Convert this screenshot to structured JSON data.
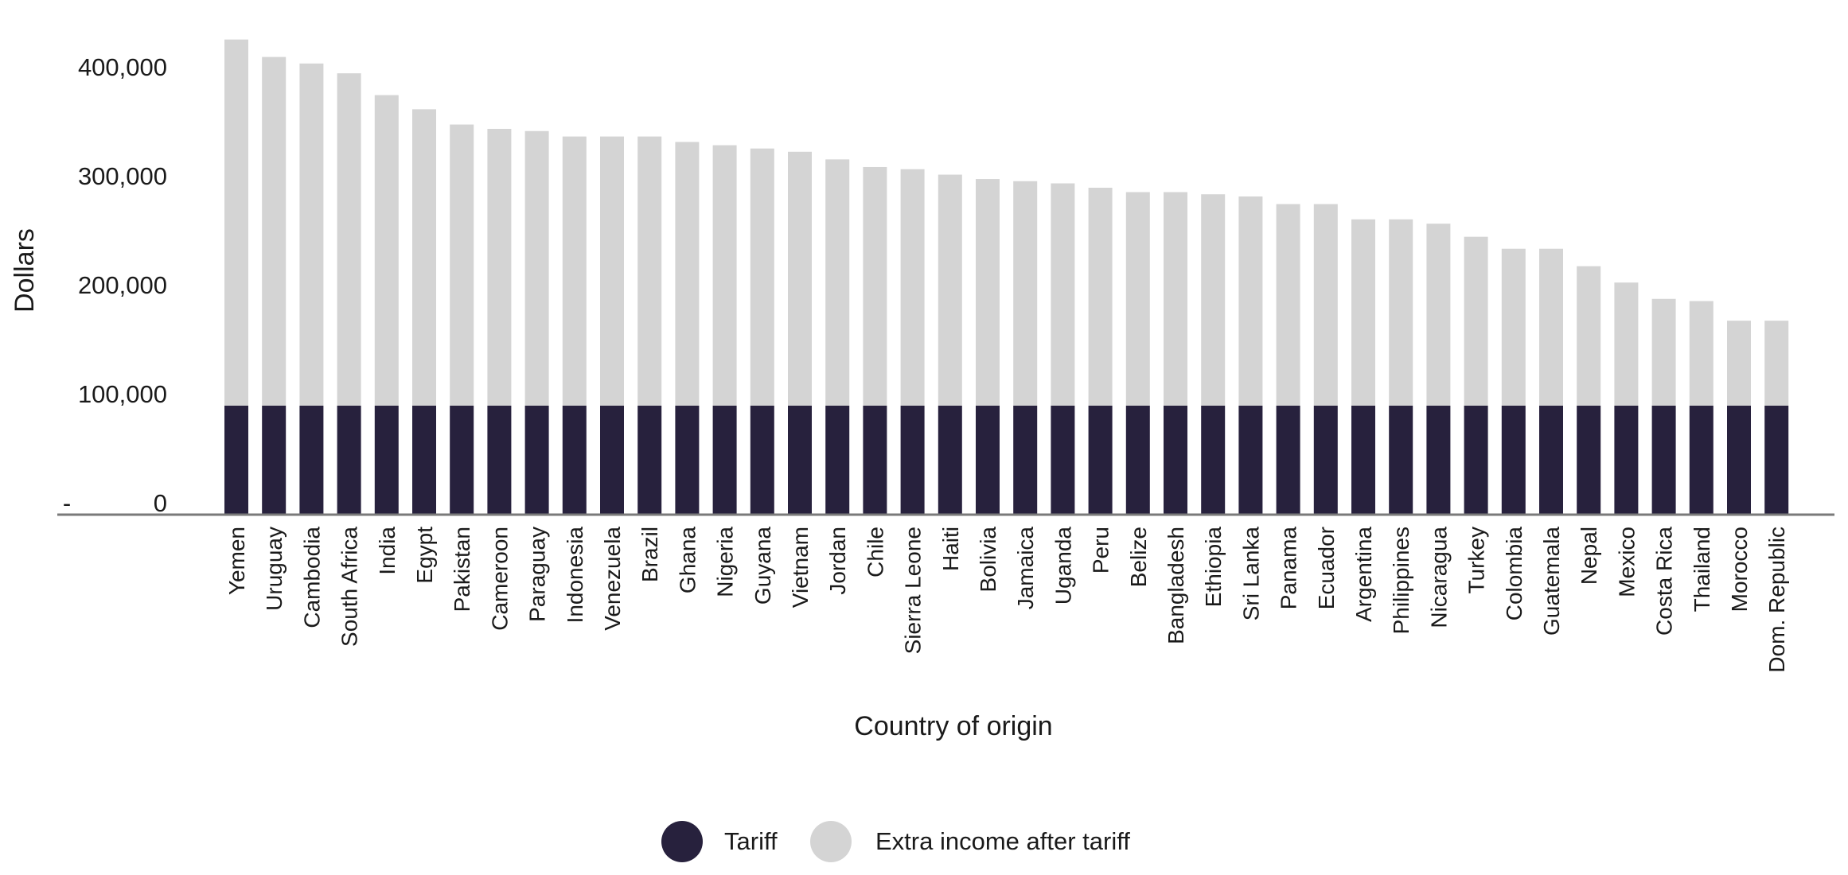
{
  "chart_data": {
    "type": "bar",
    "stacked": true,
    "title": "",
    "xlabel": "Country of origin",
    "ylabel": "Dollars",
    "ylim": [
      0,
      430000
    ],
    "yticks": [
      0,
      100000,
      200000,
      300000,
      400000
    ],
    "ytick_labels": [
      "0",
      "100,000",
      "200,000",
      "300,000",
      "400,000"
    ],
    "zero_tick_mark": "-",
    "grid": false,
    "legend_position": "bottom-center",
    "categories": [
      "Yemen",
      "Uruguay",
      "Cambodia",
      "South Africa",
      "India",
      "Egypt",
      "Pakistan",
      "Cameroon",
      "Paraguay",
      "Indonesia",
      "Venezuela",
      "Brazil",
      "Ghana",
      "Nigeria",
      "Guyana",
      "Vietnam",
      "Jordan",
      "Chile",
      "Sierra Leone",
      "Haiti",
      "Bolivia",
      "Jamaica",
      "Uganda",
      "Peru",
      "Belize",
      "Bangladesh",
      "Ethiopia",
      "Sri Lanka",
      "Panama",
      "Ecuador",
      "Argentina",
      "Philippines",
      "Nicaragua",
      "Turkey",
      "Colombia",
      "Guatemala",
      "Nepal",
      "Mexico",
      "Costa Rica",
      "Thailand",
      "Morocco",
      "Dom. Republic"
    ],
    "series": [
      {
        "name": "Tariff",
        "color": "#27213d",
        "values": [
          100000,
          100000,
          100000,
          100000,
          100000,
          100000,
          100000,
          100000,
          100000,
          100000,
          100000,
          100000,
          100000,
          100000,
          100000,
          100000,
          100000,
          100000,
          100000,
          100000,
          100000,
          100000,
          100000,
          100000,
          100000,
          100000,
          100000,
          100000,
          100000,
          100000,
          100000,
          100000,
          100000,
          100000,
          100000,
          100000,
          100000,
          100000,
          100000,
          100000,
          100000,
          100000
        ]
      },
      {
        "name": "Extra income after tariff",
        "color": "#d4d4d4",
        "values": [
          336000,
          320000,
          314000,
          305000,
          285000,
          272000,
          258000,
          254000,
          252000,
          247000,
          247000,
          247000,
          242000,
          239000,
          236000,
          233000,
          226000,
          219000,
          217000,
          212000,
          208000,
          206000,
          204000,
          200000,
          196000,
          196000,
          194000,
          192000,
          185000,
          185000,
          171000,
          171000,
          167000,
          155000,
          144000,
          144000,
          128000,
          113000,
          98000,
          96000,
          78000,
          78000
        ]
      }
    ]
  }
}
